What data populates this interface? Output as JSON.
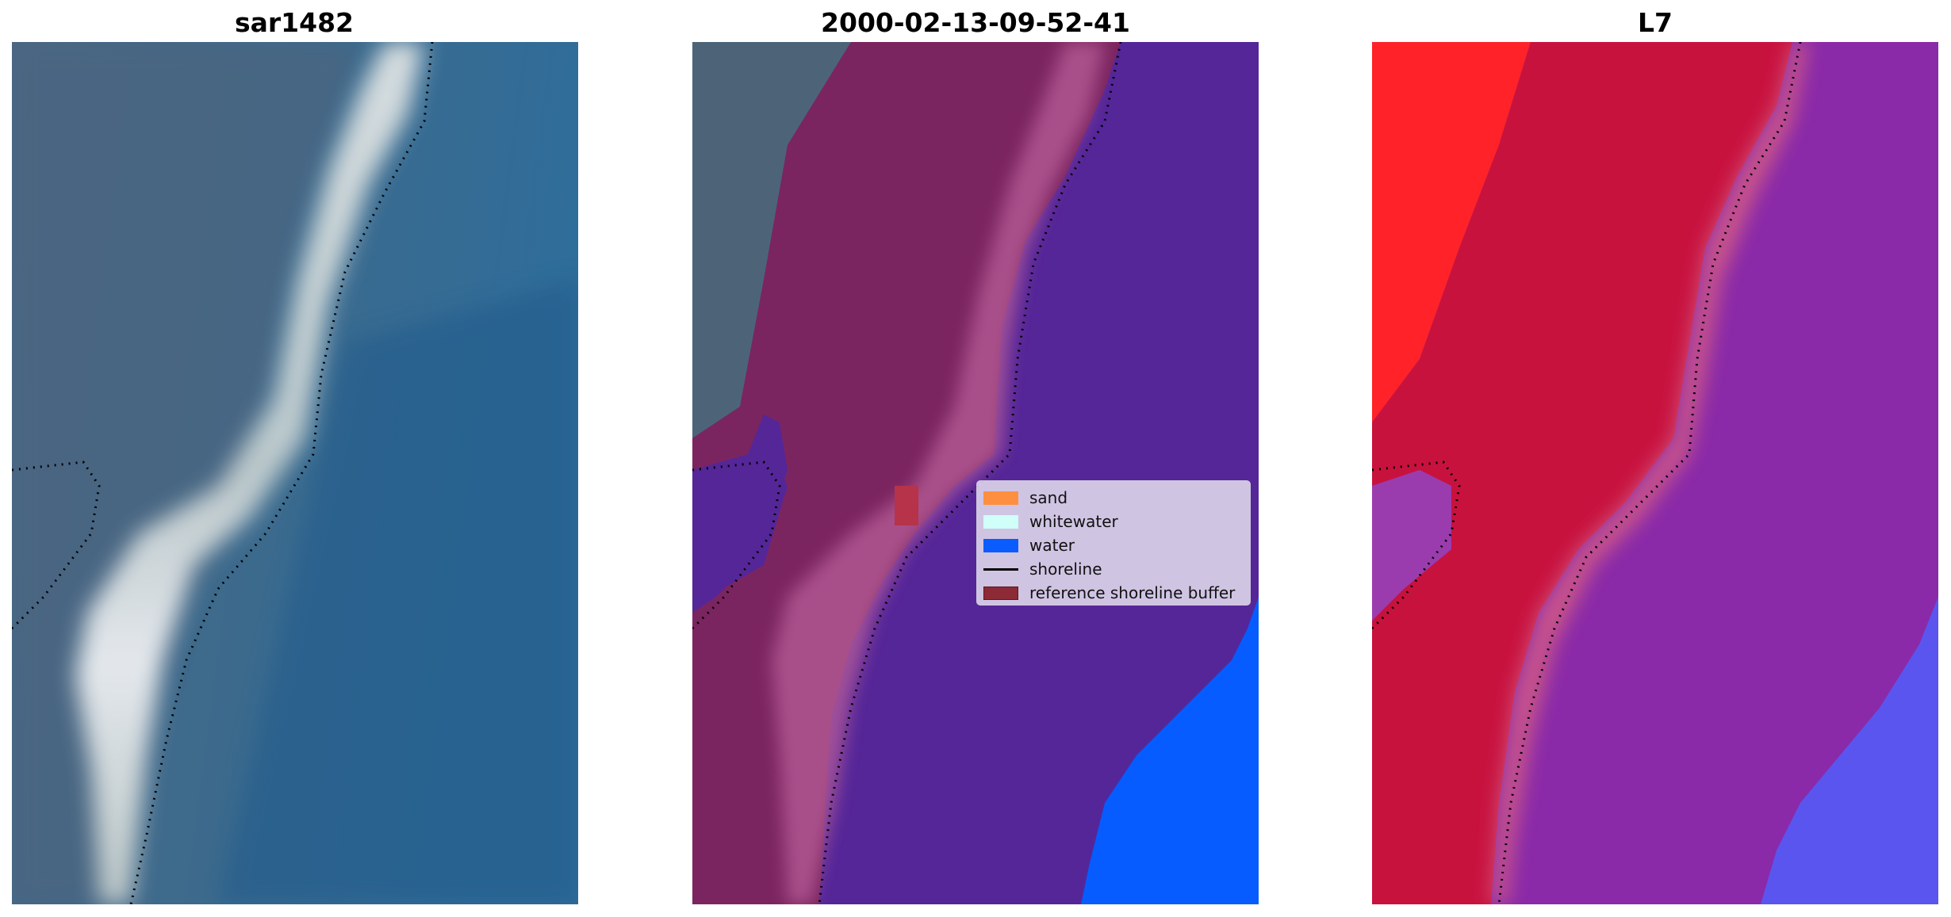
{
  "panels": [
    {
      "title": "sar1482"
    },
    {
      "title": "2000-02-13-09-52-41"
    },
    {
      "title": "L7"
    }
  ],
  "legend": {
    "items": [
      {
        "label": "sand",
        "type": "patch",
        "color": "#ff8f40"
      },
      {
        "label": "whitewater",
        "type": "patch",
        "color": "#cffff8"
      },
      {
        "label": "water",
        "type": "patch",
        "color": "#0a5cff"
      },
      {
        "label": "shoreline",
        "type": "line",
        "color": "#000000"
      },
      {
        "label": "reference shoreline buffer",
        "type": "patch",
        "color": "#8c2a35"
      }
    ]
  }
}
